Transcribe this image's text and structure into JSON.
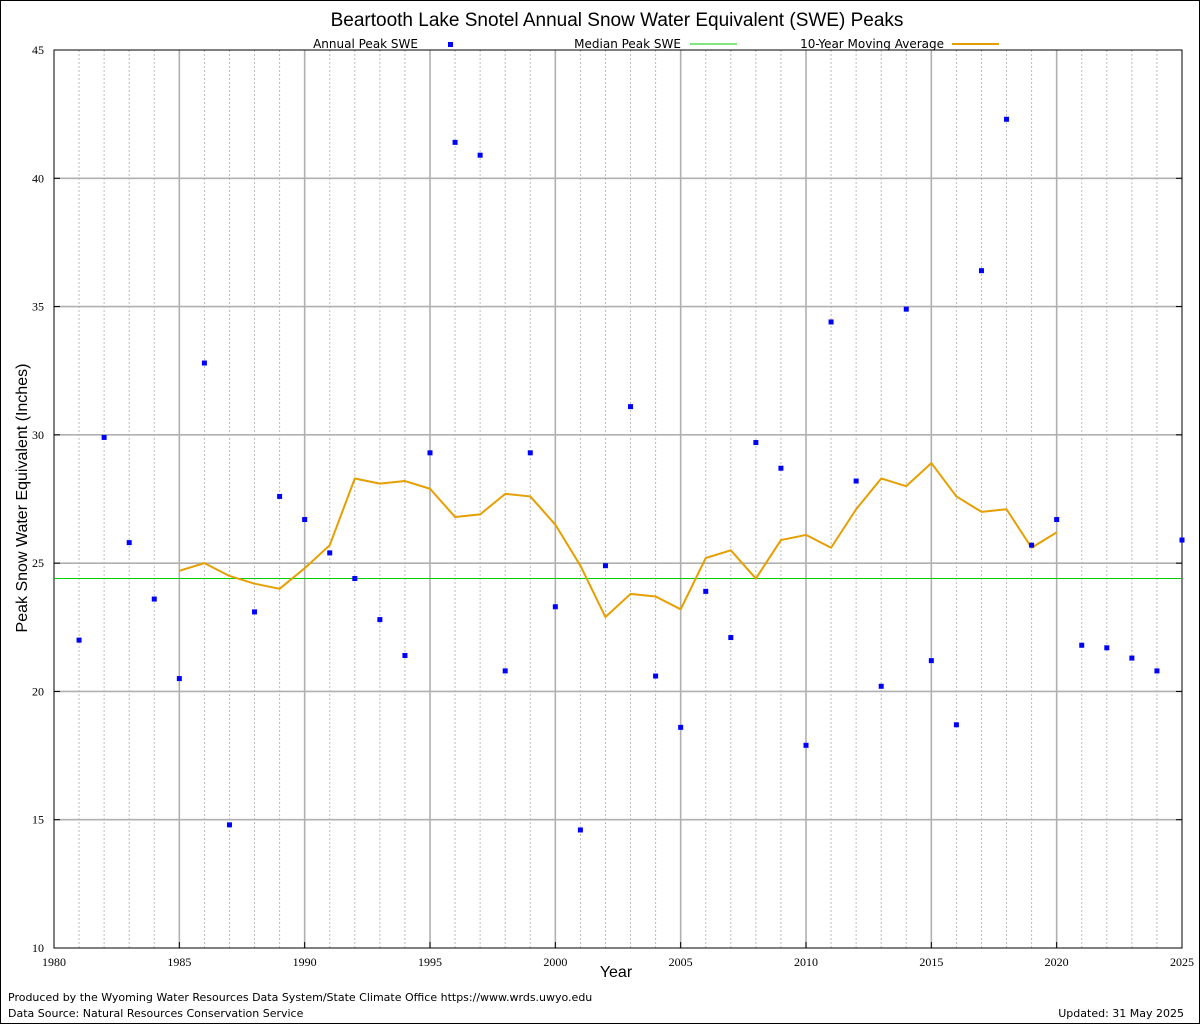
{
  "chart_data": {
    "type": "scatter",
    "title": "Beartooth Lake Snotel Annual Snow Water Equivalent (SWE) Peaks",
    "xlabel": "Year",
    "ylabel": "Peak Snow Water Equivalent (Inches)",
    "xlim": [
      1980,
      2025
    ],
    "ylim": [
      10,
      45
    ],
    "x_ticks": [
      1980,
      1985,
      1990,
      1995,
      2000,
      2005,
      2010,
      2015,
      2020,
      2025
    ],
    "y_ticks": [
      10,
      15,
      20,
      25,
      30,
      35,
      40,
      45
    ],
    "grid": true,
    "legend_position": "top",
    "series": [
      {
        "name": "Annual Peak SWE",
        "type": "scatter",
        "color": "#0000ff",
        "x": [
          1981,
          1982,
          1983,
          1984,
          1985,
          1986,
          1987,
          1988,
          1989,
          1990,
          1991,
          1992,
          1993,
          1994,
          1995,
          1996,
          1997,
          1998,
          1999,
          2000,
          2001,
          2002,
          2003,
          2004,
          2005,
          2006,
          2007,
          2008,
          2009,
          2010,
          2011,
          2012,
          2013,
          2014,
          2015,
          2016,
          2017,
          2018,
          2019,
          2020,
          2021,
          2022,
          2023,
          2024,
          2025
        ],
        "y": [
          22.0,
          29.9,
          25.8,
          23.6,
          20.5,
          32.8,
          14.8,
          23.1,
          27.6,
          26.7,
          25.4,
          24.4,
          22.8,
          21.4,
          29.3,
          41.4,
          40.9,
          20.8,
          29.3,
          23.3,
          14.6,
          24.9,
          31.1,
          20.6,
          18.6,
          23.9,
          22.1,
          29.7,
          28.7,
          17.9,
          34.4,
          28.2,
          20.2,
          34.9,
          21.2,
          18.7,
          36.4,
          42.3,
          25.7,
          26.7,
          21.8,
          21.7,
          21.3,
          20.8,
          25.9
        ]
      },
      {
        "name": "Median Peak SWE",
        "type": "line",
        "color": "#00cc00",
        "x": [
          1980,
          2025
        ],
        "y": [
          24.4,
          24.4
        ]
      },
      {
        "name": "10-Year Moving Average",
        "type": "line",
        "color": "#e69f00",
        "x": [
          1985,
          1986,
          1987,
          1988,
          1989,
          1990,
          1991,
          1992,
          1993,
          1994,
          1995,
          1996,
          1997,
          1998,
          1999,
          2000,
          2001,
          2002,
          2003,
          2004,
          2005,
          2006,
          2007,
          2008,
          2009,
          2010,
          2011,
          2012,
          2013,
          2014,
          2015,
          2016,
          2017,
          2018,
          2019,
          2020
        ],
        "y": [
          24.7,
          25.0,
          24.5,
          24.2,
          24.0,
          24.8,
          25.7,
          28.3,
          28.1,
          28.2,
          27.9,
          26.8,
          26.9,
          27.7,
          27.6,
          26.5,
          24.9,
          22.9,
          23.8,
          23.7,
          23.2,
          25.2,
          25.5,
          24.4,
          25.9,
          26.1,
          25.6,
          27.1,
          28.3,
          28.0,
          28.9,
          27.6,
          27.0,
          27.1,
          25.6,
          26.2
        ]
      }
    ]
  },
  "footer": {
    "producer": "Produced by the Wyoming Water Resources Data System/State Climate Office https://www.wrds.uwyo.edu",
    "source": "Data Source: Natural Resources Conservation Service",
    "updated": "Updated: 31 May 2025"
  }
}
